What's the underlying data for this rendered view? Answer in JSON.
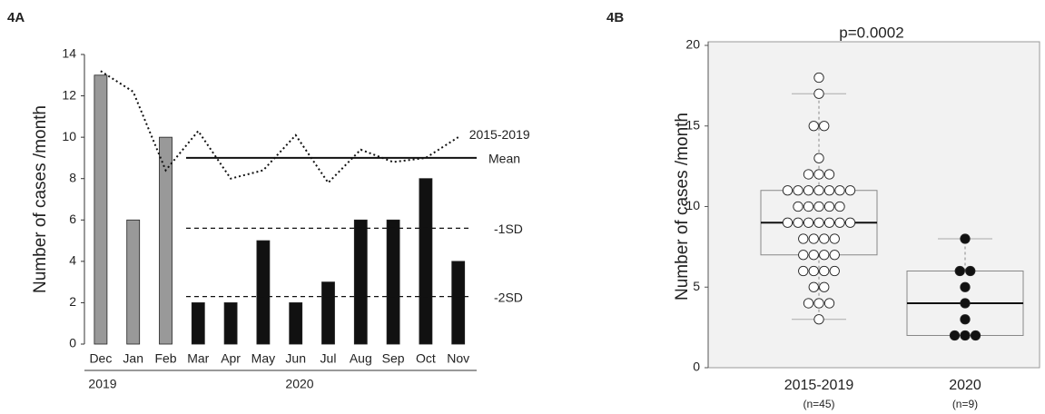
{
  "chart_data": [
    {
      "type": "bar",
      "panel_label": "4A",
      "ylabel": "Number of cases /month",
      "categories": [
        "Dec",
        "Jan",
        "Feb",
        "Mar",
        "Apr",
        "May",
        "Jun",
        "Jul",
        "Aug",
        "Sep",
        "Oct",
        "Nov"
      ],
      "values": [
        13,
        6,
        10,
        2,
        2,
        5,
        2,
        3,
        6,
        6,
        8,
        4
      ],
      "colors": [
        "#999999",
        "#999999",
        "#999999",
        "#111111",
        "#111111",
        "#111111",
        "#111111",
        "#111111",
        "#111111",
        "#111111",
        "#111111",
        "#111111"
      ],
      "x_groups": [
        "2019",
        "2020"
      ],
      "lines": [
        {
          "name": "2015-2019",
          "style": "dotted",
          "color": "#111111",
          "values": [
            13.2,
            12.2,
            8.4,
            10.3,
            8.0,
            8.4,
            10.1,
            7.8,
            9.4,
            8.8,
            9.0,
            10.0
          ]
        }
      ],
      "reference_lines": [
        {
          "label": "Mean",
          "value": 9.0,
          "style": "solid"
        },
        {
          "label": "-1SD",
          "value": 5.6,
          "style": "dashed"
        },
        {
          "label": "-2SD",
          "value": 2.3,
          "style": "dashed"
        }
      ],
      "ylim": [
        0,
        14
      ],
      "yticks": [
        0,
        2,
        4,
        6,
        8,
        10,
        12,
        14
      ]
    },
    {
      "type": "box",
      "panel_label": "4B",
      "ylabel": "Number of cases /month",
      "annotation": "p=0.0002",
      "background": "#f2f2f2",
      "groups": [
        {
          "name": "2015-2019",
          "n_label": "(n=45)",
          "marker_fill": "#ffffff",
          "values": [
            18,
            17,
            15,
            15,
            13,
            12,
            12,
            12,
            11,
            11,
            11,
            11,
            11,
            11,
            11,
            10,
            10,
            10,
            10,
            10,
            9,
            9,
            9,
            9,
            9,
            9,
            9,
            8,
            8,
            8,
            8,
            7,
            7,
            7,
            7,
            6,
            6,
            6,
            6,
            5,
            5,
            4,
            4,
            4,
            3
          ],
          "whisker_low": 3,
          "q1": 7,
          "median": 9,
          "q3": 11,
          "whisker_high": 17
        },
        {
          "name": "2020",
          "n_label": "(n=9)",
          "marker_fill": "#111111",
          "values": [
            8,
            6,
            6,
            5,
            4,
            3,
            2,
            2,
            2
          ],
          "whisker_low": 2,
          "q1": 2,
          "median": 4,
          "q3": 6,
          "whisker_high": 8
        }
      ],
      "ylim": [
        0,
        20
      ],
      "yticks": [
        0,
        5,
        10,
        15,
        20
      ]
    }
  ]
}
